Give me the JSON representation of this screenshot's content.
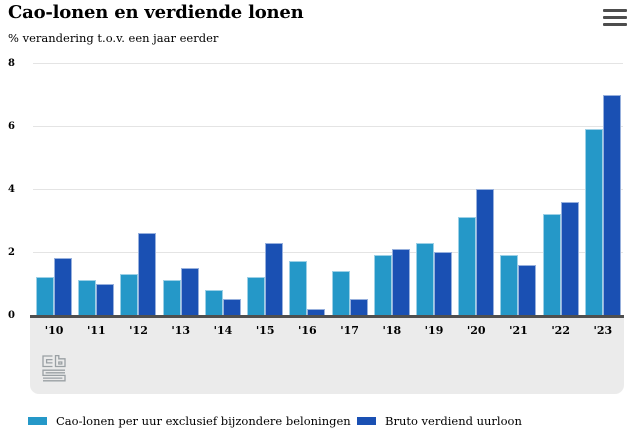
{
  "header": {
    "menu_icon": "hamburger-menu-icon"
  },
  "colors": {
    "series1": "#2598c8",
    "series2": "#1a50b3",
    "axis": "#4f4f4f",
    "grid": "#e4e4e4",
    "band": "#ebebeb",
    "logo_gray": "#9aa0a4"
  },
  "chart_data": {
    "type": "bar",
    "title": "Cao-lonen en verdiende lonen",
    "subtitle": "% verandering t.o.v. een jaar eerder",
    "categories": [
      "'10",
      "'11",
      "'12",
      "'13",
      "'14",
      "'15",
      "'16",
      "'17",
      "'18",
      "'19",
      "'20",
      "'21",
      "'22",
      "'23"
    ],
    "series": [
      {
        "name": "Cao-lonen per uur exclusief bijzondere beloningen",
        "color": "#2598c8",
        "values": [
          1.2,
          1.1,
          1.3,
          1.1,
          0.8,
          1.2,
          1.7,
          1.4,
          1.9,
          2.3,
          3.1,
          1.9,
          3.2,
          5.9
        ]
      },
      {
        "name": "Bruto verdiend uurloon",
        "color": "#1a50b3",
        "values": [
          1.8,
          1.0,
          2.6,
          1.5,
          0.5,
          2.3,
          0.2,
          0.5,
          2.1,
          2.0,
          4.0,
          1.6,
          3.6,
          7.0
        ]
      }
    ],
    "ylim": [
      0,
      8
    ],
    "yticks": [
      0,
      2,
      4,
      6,
      8
    ],
    "grid": true,
    "legend_position": "bottom",
    "source_logo": "cbs-logo"
  }
}
